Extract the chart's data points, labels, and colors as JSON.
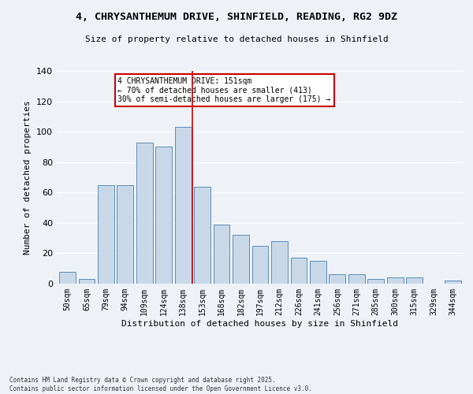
{
  "title": "4, CHRYSANTHEMUM DRIVE, SHINFIELD, READING, RG2 9DZ",
  "subtitle": "Size of property relative to detached houses in Shinfield",
  "xlabel": "Distribution of detached houses by size in Shinfield",
  "ylabel": "Number of detached properties",
  "categories": [
    "50sqm",
    "65sqm",
    "79sqm",
    "94sqm",
    "109sqm",
    "124sqm",
    "138sqm",
    "153sqm",
    "168sqm",
    "182sqm",
    "197sqm",
    "212sqm",
    "226sqm",
    "241sqm",
    "256sqm",
    "271sqm",
    "285sqm",
    "300sqm",
    "315sqm",
    "329sqm",
    "344sqm"
  ],
  "values": [
    8,
    3,
    65,
    65,
    93,
    90,
    103,
    64,
    39,
    32,
    25,
    28,
    17,
    15,
    6,
    6,
    3,
    4,
    4,
    0,
    2
  ],
  "bar_color": "#c8d8e8",
  "bar_edge_color": "#5b8db8",
  "vline_color": "#cc0000",
  "annotation_text": "4 CHRYSANTHEMUM DRIVE: 151sqm\n← 70% of detached houses are smaller (413)\n30% of semi-detached houses are larger (175) →",
  "annotation_box_color": "#cc0000",
  "annotation_box_fill": "#ffffff",
  "ylim": [
    0,
    140
  ],
  "yticks": [
    0,
    20,
    40,
    60,
    80,
    100,
    120,
    140
  ],
  "bg_color": "#eef2f7",
  "grid_color": "#ffffff",
  "footer": "Contains HM Land Registry data © Crown copyright and database right 2025.\nContains public sector information licensed under the Open Government Licence v3.0."
}
